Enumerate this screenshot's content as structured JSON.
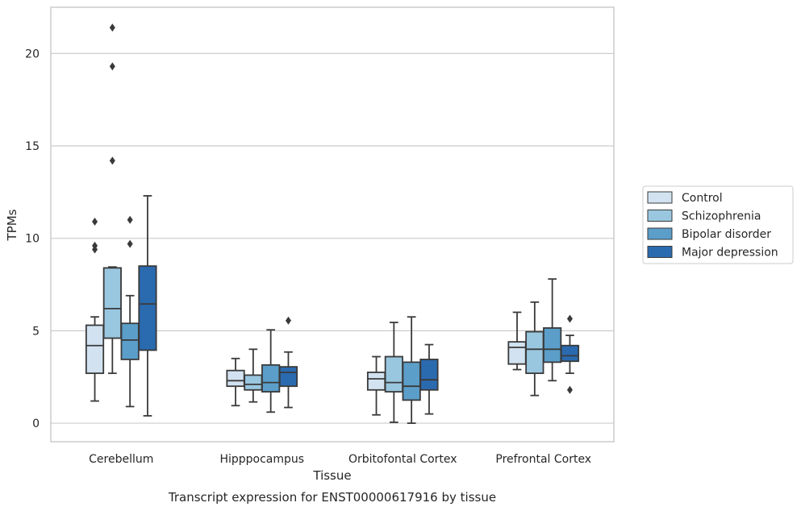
{
  "chart_data": {
    "type": "box",
    "caption": "Transcript expression for ENST00000617916 by tissue",
    "xlabel": "Tissue",
    "ylabel": "TPMs",
    "ylim": [
      -1,
      22.5
    ],
    "yticks": [
      0,
      5,
      10,
      15,
      20
    ],
    "grid": "horizontal",
    "legend_position": "right",
    "categories": [
      "Cerebellum",
      "Hipppocampus",
      "Orbitofontal Cortex",
      "Prefrontal Cortex"
    ],
    "series": [
      {
        "name": "Control",
        "color": "#d2e2f1",
        "boxes": [
          {
            "whisker_low": 1.2,
            "q1": 2.7,
            "median": 4.2,
            "q3": 5.3,
            "whisker_high": 5.75,
            "outliers": [
              9.4,
              9.6,
              10.9
            ]
          },
          {
            "whisker_low": 0.95,
            "q1": 2.0,
            "median": 2.3,
            "q3": 2.85,
            "whisker_high": 3.5,
            "outliers": []
          },
          {
            "whisker_low": 0.45,
            "q1": 1.8,
            "median": 2.4,
            "q3": 2.75,
            "whisker_high": 3.6,
            "outliers": []
          },
          {
            "whisker_low": 2.9,
            "q1": 3.2,
            "median": 4.1,
            "q3": 4.4,
            "whisker_high": 6.0,
            "outliers": []
          }
        ]
      },
      {
        "name": "Schizophrenia",
        "color": "#9ac7e0",
        "boxes": [
          {
            "whisker_low": 2.7,
            "q1": 4.6,
            "median": 6.2,
            "q3": 8.4,
            "whisker_high": 8.45,
            "outliers": [
              14.2,
              19.3,
              21.4
            ]
          },
          {
            "whisker_low": 1.15,
            "q1": 1.8,
            "median": 2.1,
            "q3": 2.6,
            "whisker_high": 4.0,
            "outliers": []
          },
          {
            "whisker_low": 0.05,
            "q1": 1.7,
            "median": 2.2,
            "q3": 3.6,
            "whisker_high": 5.45,
            "outliers": []
          },
          {
            "whisker_low": 1.5,
            "q1": 2.7,
            "median": 4.0,
            "q3": 4.95,
            "whisker_high": 6.55,
            "outliers": []
          }
        ]
      },
      {
        "name": "Bipolar disorder",
        "color": "#5b9ec9",
        "boxes": [
          {
            "whisker_low": 0.9,
            "q1": 3.45,
            "median": 4.5,
            "q3": 5.4,
            "whisker_high": 6.9,
            "outliers": [
              9.7,
              11.0
            ]
          },
          {
            "whisker_low": 0.6,
            "q1": 1.7,
            "median": 2.2,
            "q3": 3.15,
            "whisker_high": 5.05,
            "outliers": []
          },
          {
            "whisker_low": 0.0,
            "q1": 1.25,
            "median": 2.0,
            "q3": 3.3,
            "whisker_high": 5.75,
            "outliers": []
          },
          {
            "whisker_low": 2.3,
            "q1": 3.3,
            "median": 4.0,
            "q3": 5.15,
            "whisker_high": 7.8,
            "outliers": []
          }
        ]
      },
      {
        "name": "Major depression",
        "color": "#2a6aaf",
        "boxes": [
          {
            "whisker_low": 0.4,
            "q1": 3.95,
            "median": 6.45,
            "q3": 8.5,
            "whisker_high": 12.3,
            "outliers": []
          },
          {
            "whisker_low": 0.85,
            "q1": 2.0,
            "median": 2.75,
            "q3": 3.05,
            "whisker_high": 3.85,
            "outliers": [
              5.55
            ]
          },
          {
            "whisker_low": 0.5,
            "q1": 1.8,
            "median": 2.35,
            "q3": 3.45,
            "whisker_high": 4.25,
            "outliers": []
          },
          {
            "whisker_low": 2.7,
            "q1": 3.35,
            "median": 3.65,
            "q3": 4.2,
            "whisker_high": 4.75,
            "outliers": [
              1.8,
              5.65
            ]
          }
        ]
      }
    ]
  }
}
